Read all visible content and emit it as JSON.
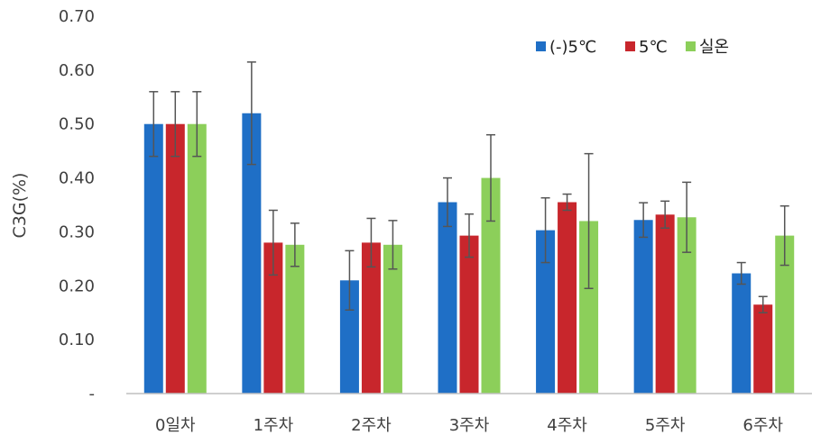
{
  "chart_data": {
    "type": "bar",
    "title": "",
    "xlabel": "",
    "ylabel": "C3G(%)",
    "ylim": [
      0,
      0.7
    ],
    "yticks": [
      {
        "value": 0.0,
        "label": "-"
      },
      {
        "value": 0.1,
        "label": "0.10"
      },
      {
        "value": 0.2,
        "label": "0.20"
      },
      {
        "value": 0.3,
        "label": "0.30"
      },
      {
        "value": 0.4,
        "label": "0.40"
      },
      {
        "value": 0.5,
        "label": "0.50"
      },
      {
        "value": 0.6,
        "label": "0.60"
      },
      {
        "value": 0.7,
        "label": "0.70"
      }
    ],
    "categories": [
      "0일차",
      "1주차",
      "2주차",
      "3주차",
      "4주차",
      "5주차",
      "6주차"
    ],
    "grid": false,
    "legend_position": "top-right",
    "series": [
      {
        "name": "(-)5℃",
        "color": "#1f6fc6",
        "values": [
          0.5,
          0.52,
          0.21,
          0.355,
          0.303,
          0.322,
          0.223
        ],
        "errors": [
          0.06,
          0.095,
          0.055,
          0.045,
          0.06,
          0.032,
          0.02
        ]
      },
      {
        "name": "5℃",
        "color": "#c8262c",
        "values": [
          0.5,
          0.28,
          0.28,
          0.293,
          0.355,
          0.332,
          0.165
        ],
        "errors": [
          0.06,
          0.06,
          0.045,
          0.04,
          0.015,
          0.025,
          0.015
        ]
      },
      {
        "name": "실온",
        "color": "#8ccf5a",
        "values": [
          0.5,
          0.276,
          0.276,
          0.4,
          0.32,
          0.327,
          0.293
        ],
        "errors": [
          0.06,
          0.04,
          0.045,
          0.08,
          0.125,
          0.065,
          0.055
        ]
      }
    ]
  }
}
